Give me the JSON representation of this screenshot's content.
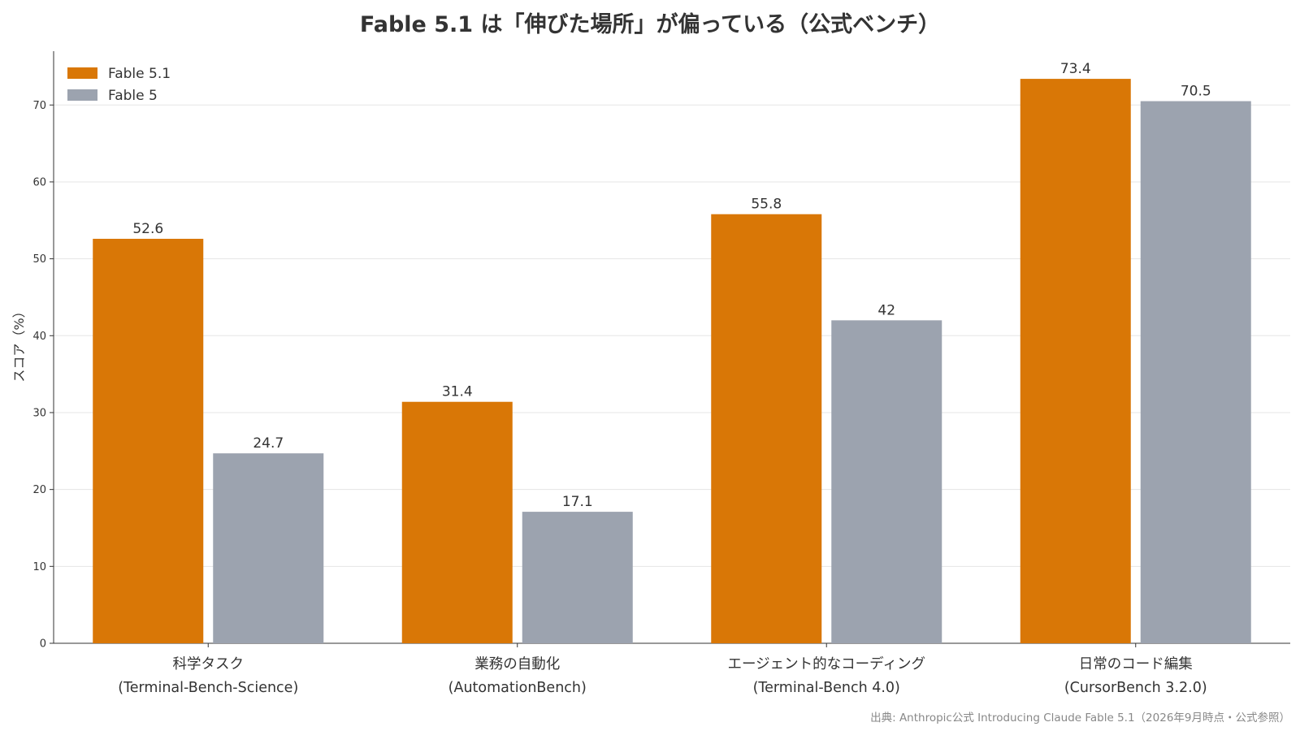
{
  "chart_data": {
    "type": "bar",
    "title": "Fable 5.1 は「伸びた場所」が偏っている（公式ベンチ）",
    "xlabel": "",
    "ylabel": "スコア（%）",
    "ylim": [
      0,
      77
    ],
    "yticks": [
      "0",
      "10",
      "20",
      "30",
      "40",
      "50",
      "60",
      "70"
    ],
    "grid": true,
    "legend_position": "top-left",
    "categories": [
      {
        "line1": "科学タスク",
        "line2": "(Terminal-Bench-Science)"
      },
      {
        "line1": "業務の自動化",
        "line2": "(AutomationBench)"
      },
      {
        "line1": "エージェント的なコーディング",
        "line2": "(Terminal-Bench 4.0)"
      },
      {
        "line1": "日常のコード編集",
        "line2": "(CursorBench 3.2.0)"
      }
    ],
    "series": [
      {
        "name": "Fable 5.1",
        "color": "#D97706",
        "values": [
          52.6,
          31.4,
          55.8,
          73.4
        ],
        "labels": [
          "52.6",
          "31.4",
          "55.8",
          "73.4"
        ]
      },
      {
        "name": "Fable 5",
        "color": "#9CA3AF",
        "values": [
          24.7,
          17.1,
          42,
          70.5
        ],
        "labels": [
          "24.7",
          "17.1",
          "42",
          "70.5"
        ]
      }
    ],
    "source": "出典: Anthropic公式 Introducing Claude Fable 5.1（2026年9月時点・公式参照）"
  }
}
